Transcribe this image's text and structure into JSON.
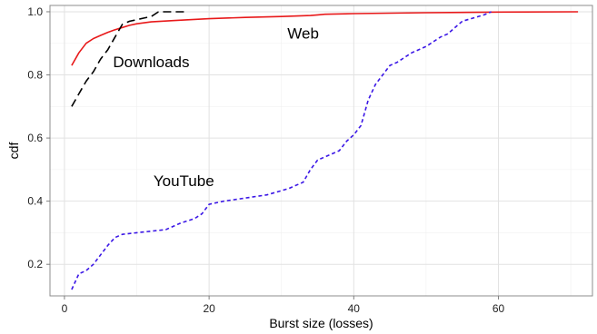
{
  "chart_data": {
    "type": "line",
    "title": "",
    "xlabel": "Burst size (losses)",
    "ylabel": "cdf",
    "xlim": [
      -2,
      73
    ],
    "ylim": [
      0.1,
      1.02
    ],
    "xticks": [
      0,
      20,
      40,
      60
    ],
    "yticks": [
      0.2,
      0.4,
      0.6,
      0.8,
      1.0
    ],
    "ytick_labels": [
      "0.2",
      "0.4",
      "0.6",
      "0.8",
      "1.0"
    ],
    "grid": true,
    "series": [
      {
        "name": "Web",
        "color": "#e8191a",
        "dash": "solid",
        "points": [
          [
            1,
            0.83
          ],
          [
            2,
            0.87
          ],
          [
            3,
            0.9
          ],
          [
            4,
            0.915
          ],
          [
            5,
            0.925
          ],
          [
            6,
            0.935
          ],
          [
            7,
            0.943
          ],
          [
            8,
            0.95
          ],
          [
            9,
            0.957
          ],
          [
            10,
            0.962
          ],
          [
            12,
            0.968
          ],
          [
            15,
            0.972
          ],
          [
            20,
            0.978
          ],
          [
            25,
            0.982
          ],
          [
            30,
            0.985
          ],
          [
            34,
            0.988
          ],
          [
            35,
            0.99
          ],
          [
            36,
            0.992
          ],
          [
            40,
            0.994
          ],
          [
            50,
            0.997
          ],
          [
            60,
            0.999
          ],
          [
            71,
            1.0
          ]
        ]
      },
      {
        "name": "Downloads",
        "color": "#000000",
        "dash": "long",
        "points": [
          [
            1,
            0.7
          ],
          [
            2,
            0.74
          ],
          [
            3,
            0.78
          ],
          [
            4,
            0.81
          ],
          [
            5,
            0.85
          ],
          [
            6,
            0.88
          ],
          [
            7,
            0.92
          ],
          [
            8,
            0.96
          ],
          [
            9,
            0.97
          ],
          [
            10,
            0.975
          ],
          [
            11,
            0.98
          ],
          [
            12,
            0.985
          ],
          [
            13,
            1.0
          ],
          [
            15,
            1.0
          ],
          [
            17,
            1.0
          ]
        ]
      },
      {
        "name": "YouTube",
        "color": "#3b17e6",
        "dash": "short",
        "points": [
          [
            1,
            0.12
          ],
          [
            2,
            0.17
          ],
          [
            3,
            0.18
          ],
          [
            4,
            0.2
          ],
          [
            5,
            0.23
          ],
          [
            6,
            0.26
          ],
          [
            7,
            0.285
          ],
          [
            8,
            0.295
          ],
          [
            10,
            0.3
          ],
          [
            12,
            0.305
          ],
          [
            14,
            0.31
          ],
          [
            16,
            0.33
          ],
          [
            18,
            0.345
          ],
          [
            19,
            0.36
          ],
          [
            20,
            0.39
          ],
          [
            22,
            0.4
          ],
          [
            25,
            0.41
          ],
          [
            28,
            0.42
          ],
          [
            31,
            0.44
          ],
          [
            33,
            0.46
          ],
          [
            34,
            0.5
          ],
          [
            35,
            0.53
          ],
          [
            37,
            0.55
          ],
          [
            38,
            0.56
          ],
          [
            39,
            0.59
          ],
          [
            40,
            0.61
          ],
          [
            41,
            0.64
          ],
          [
            42,
            0.72
          ],
          [
            43,
            0.77
          ],
          [
            44,
            0.8
          ],
          [
            45,
            0.83
          ],
          [
            46,
            0.84
          ],
          [
            48,
            0.87
          ],
          [
            50,
            0.89
          ],
          [
            52,
            0.92
          ],
          [
            53,
            0.93
          ],
          [
            55,
            0.97
          ],
          [
            58,
            0.99
          ],
          [
            59,
            1.0
          ]
        ]
      }
    ],
    "annotations": [
      {
        "text": "Web",
        "x": 33,
        "y": 0.915
      },
      {
        "text": "Downloads",
        "x": 12,
        "y": 0.825
      },
      {
        "text": "YouTube",
        "x": 16.5,
        "y": 0.448
      }
    ]
  }
}
